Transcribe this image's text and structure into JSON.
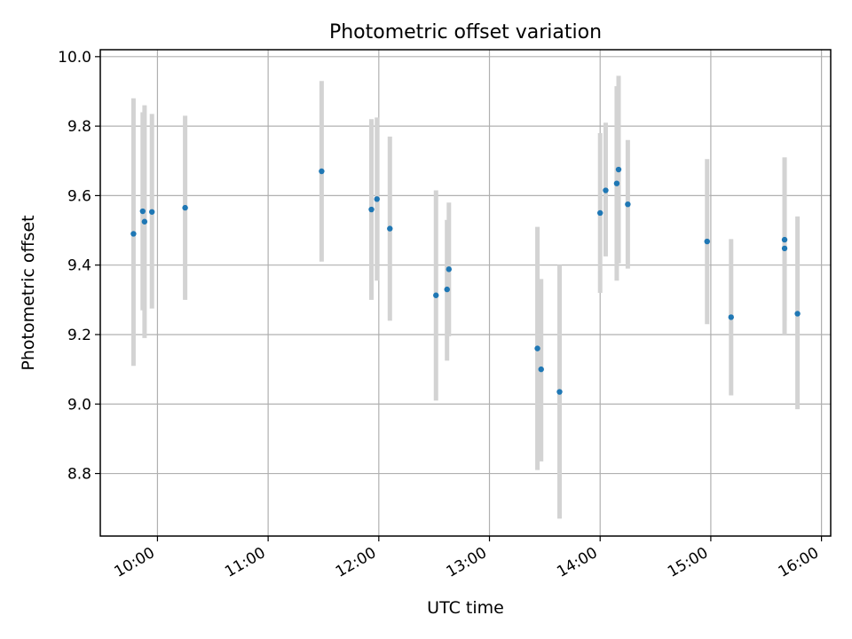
{
  "chart_data": {
    "type": "scatter",
    "title": "Photometric offset variation",
    "xlabel": "UTC time",
    "ylabel": "Photometric offset",
    "x_ticks": [
      "10:00",
      "11:00",
      "12:00",
      "13:00",
      "14:00",
      "15:00",
      "16:00"
    ],
    "y_ticks": [
      "8.8",
      "9.0",
      "9.2",
      "9.4",
      "9.6",
      "9.8",
      "10.0"
    ],
    "xlim": [
      "09:29",
      "16:05"
    ],
    "ylim": [
      8.62,
      10.02
    ],
    "grid": true,
    "colors": {
      "point": "#1f77b4",
      "errorbar": "#d3d3d3",
      "grid": "#b0b0b0"
    },
    "series": [
      {
        "points": [
          {
            "x": "09:47",
            "y": 9.49,
            "err_low": 9.11,
            "err_high": 9.88
          },
          {
            "x": "09:52",
            "y": 9.555,
            "err_low": 9.27,
            "err_high": 9.84
          },
          {
            "x": "09:53",
            "y": 9.525,
            "err_low": 9.19,
            "err_high": 9.86
          },
          {
            "x": "09:57",
            "y": 9.553,
            "err_low": 9.275,
            "err_high": 9.835
          },
          {
            "x": "10:15",
            "y": 9.565,
            "err_low": 9.3,
            "err_high": 9.83
          },
          {
            "x": "11:29",
            "y": 9.67,
            "err_low": 9.41,
            "err_high": 9.93
          },
          {
            "x": "11:56",
            "y": 9.56,
            "err_low": 9.3,
            "err_high": 9.82
          },
          {
            "x": "11:59",
            "y": 9.59,
            "err_low": 9.355,
            "err_high": 9.825
          },
          {
            "x": "12:06",
            "y": 9.505,
            "err_low": 9.24,
            "err_high": 9.77
          },
          {
            "x": "12:31",
            "y": 9.313,
            "err_low": 9.01,
            "err_high": 9.615
          },
          {
            "x": "12:37",
            "y": 9.33,
            "err_low": 9.125,
            "err_high": 9.53
          },
          {
            "x": "12:38",
            "y": 9.388,
            "err_low": 9.195,
            "err_high": 9.58
          },
          {
            "x": "13:26",
            "y": 9.16,
            "err_low": 8.81,
            "err_high": 9.51
          },
          {
            "x": "13:28",
            "y": 9.1,
            "err_low": 8.835,
            "err_high": 9.36
          },
          {
            "x": "13:38",
            "y": 9.035,
            "err_low": 8.67,
            "err_high": 9.4
          },
          {
            "x": "14:00",
            "y": 9.55,
            "err_low": 9.32,
            "err_high": 9.78
          },
          {
            "x": "14:03",
            "y": 9.615,
            "err_low": 9.425,
            "err_high": 9.81
          },
          {
            "x": "14:09",
            "y": 9.635,
            "err_low": 9.355,
            "err_high": 9.915
          },
          {
            "x": "14:10",
            "y": 9.675,
            "err_low": 9.405,
            "err_high": 9.945
          },
          {
            "x": "14:15",
            "y": 9.575,
            "err_low": 9.39,
            "err_high": 9.76
          },
          {
            "x": "14:58",
            "y": 9.468,
            "err_low": 9.23,
            "err_high": 9.705
          },
          {
            "x": "15:11",
            "y": 9.25,
            "err_low": 9.025,
            "err_high": 9.475
          },
          {
            "x": "15:40",
            "y": 9.448,
            "err_low": 9.2,
            "err_high": 9.71
          },
          {
            "x": "15:40",
            "y": 9.473,
            "err_low": 9.24,
            "err_high": 9.71
          },
          {
            "x": "15:47",
            "y": 9.26,
            "err_low": 8.985,
            "err_high": 9.54
          }
        ]
      }
    ]
  }
}
